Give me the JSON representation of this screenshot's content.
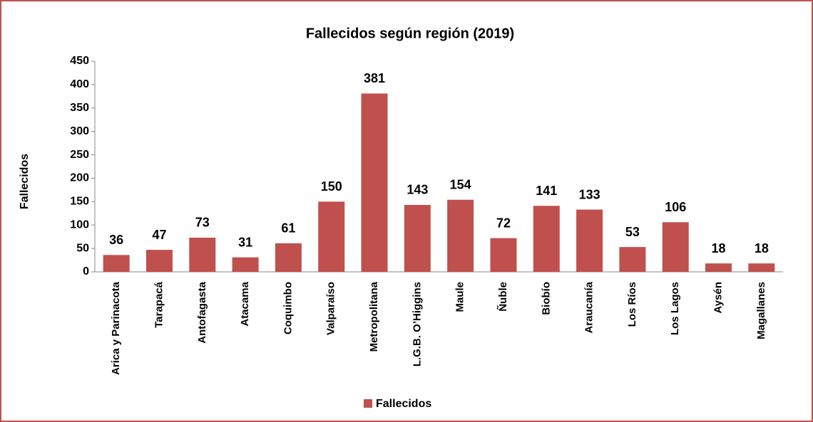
{
  "chart_data": {
    "type": "bar",
    "title": "Fallecidos según región (2019)",
    "y_label": "Fallecidos",
    "categories": [
      "Arica y Parinacota",
      "Tarapacá",
      "Antofagasta",
      "Atacama",
      "Coquimbo",
      "Valparaíso",
      "Metropolitana",
      "L.G.B. O’Higgins",
      "Maule",
      "Ñuble",
      "Biobío",
      "Araucanía",
      "Los Ríos",
      "Los Lagos",
      "Aysén",
      "Magallanes"
    ],
    "series": [
      {
        "name": "Fallecidos",
        "color": "#c0504d",
        "values": [
          36,
          47,
          73,
          31,
          61,
          150,
          381,
          143,
          154,
          72,
          141,
          133,
          53,
          106,
          18,
          18
        ]
      }
    ],
    "ylim": [
      0,
      450
    ],
    "yticks": [
      0,
      50,
      100,
      150,
      200,
      250,
      300,
      350,
      400,
      450
    ],
    "legend": "bottom"
  }
}
